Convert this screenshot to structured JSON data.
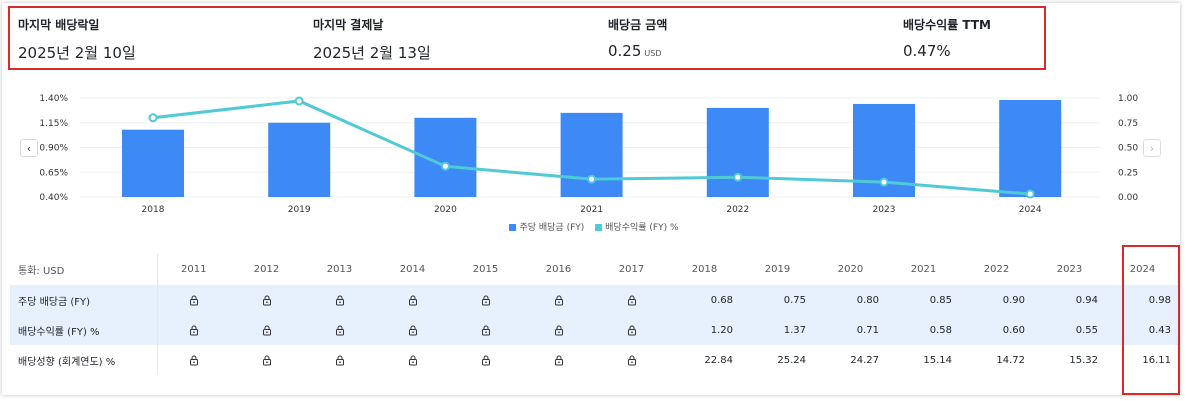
{
  "summary": {
    "items": [
      {
        "label": "마지막 배당락일",
        "value": "2025년 2월 10일",
        "unit": ""
      },
      {
        "label": "마지막 결제날",
        "value": "2025년 2월 13일",
        "unit": ""
      },
      {
        "label": "배당금 금액",
        "value": "0.25",
        "unit": "USD"
      },
      {
        "label": "배당수익률 TTM",
        "value": "0.47%",
        "unit": ""
      }
    ]
  },
  "chart_data": {
    "type": "bar",
    "categories": [
      "2018",
      "2019",
      "2020",
      "2021",
      "2022",
      "2023",
      "2024"
    ],
    "series": [
      {
        "name": "주당 배당금 (FY)",
        "type": "bar",
        "axis": "right",
        "values": [
          0.68,
          0.75,
          0.8,
          0.85,
          0.9,
          0.94,
          0.98
        ],
        "color": "#3d8af7"
      },
      {
        "name": "배당수익률 (FY) %",
        "type": "line",
        "axis": "left",
        "values": [
          1.2,
          1.37,
          0.71,
          0.58,
          0.6,
          0.55,
          0.43
        ],
        "color": "#4fcad6"
      }
    ],
    "y_left_ticks": [
      "1.40%",
      "1.15%",
      "0.90%",
      "0.65%",
      "0.40%"
    ],
    "y_left_range": [
      0.4,
      1.4
    ],
    "y_right_ticks": [
      "1.00",
      "0.75",
      "0.50",
      "0.25",
      "0.00"
    ],
    "y_right_range": [
      0,
      1.0
    ],
    "legend_position": "bottom"
  },
  "nav": {
    "prev": "‹",
    "next": "›"
  },
  "table": {
    "currency_label": "통화: USD",
    "years": [
      "2011",
      "2012",
      "2013",
      "2014",
      "2015",
      "2016",
      "2017",
      "2018",
      "2019",
      "2020",
      "2021",
      "2022",
      "2023",
      "2024"
    ],
    "rows": [
      {
        "label": "주당 배당금 (FY)",
        "cells": [
          "lock",
          "lock",
          "lock",
          "lock",
          "lock",
          "lock",
          "lock",
          "0.68",
          "0.75",
          "0.80",
          "0.85",
          "0.90",
          "0.94",
          "0.98"
        ]
      },
      {
        "label": "배당수익률 (FY) %",
        "cells": [
          "lock",
          "lock",
          "lock",
          "lock",
          "lock",
          "lock",
          "lock",
          "1.20",
          "1.37",
          "0.71",
          "0.58",
          "0.60",
          "0.55",
          "0.43"
        ]
      },
      {
        "label": "배당성향 (회계연도) %",
        "cells": [
          "lock",
          "lock",
          "lock",
          "lock",
          "lock",
          "lock",
          "lock",
          "22.84",
          "25.24",
          "24.27",
          "15.14",
          "14.72",
          "15.32",
          "16.11"
        ]
      }
    ]
  },
  "colors": {
    "bar": "#3d8af7",
    "line": "#4fcad6",
    "highlight": "#d52b2b",
    "row_tint": "#e6f1fd"
  }
}
